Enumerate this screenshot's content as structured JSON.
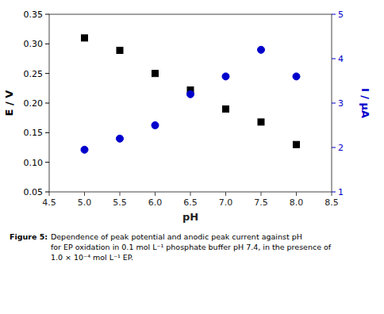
{
  "chart_data": {
    "type": "scatter",
    "xlabel": "pH",
    "ylabel": "E / V",
    "y2label": "I / μA",
    "x": [
      5.0,
      5.5,
      6.0,
      6.5,
      7.0,
      7.5,
      8.0
    ],
    "series": [
      {
        "color": "#000000",
        "marker": "square",
        "values": [
          0.31,
          0.289,
          0.25,
          0.222,
          0.19,
          0.168,
          0.13
        ]
      },
      {
        "color": "#0000cc",
        "marker": "circle",
        "axis": "y2",
        "values": [
          1.95,
          2.2,
          2.5,
          3.2,
          3.6,
          4.2,
          3.6
        ]
      }
    ],
    "xlim": [
      4.5,
      8.5
    ],
    "xticks": [
      4.5,
      {
        "value": 5.0,
        "label": "5.0"
      },
      5.5,
      {
        "value": 6.0,
        "label": "6.0"
      },
      6.5,
      {
        "value": 7.0,
        "label": "7.0"
      },
      7.5,
      {
        "value": 8.0,
        "label": "8.0"
      },
      8.5
    ],
    "ylim": [
      0.05,
      0.35
    ],
    "yticks": [
      0.05,
      {
        "value": 0.1,
        "label": "0.10"
      },
      0.15,
      {
        "value": 0.2,
        "label": "0.20"
      },
      0.25,
      {
        "value": 0.3,
        "label": "0.30"
      },
      0.35
    ],
    "y2lim": [
      1,
      5
    ],
    "y2ticks": [
      1,
      2,
      3,
      4,
      5
    ],
    "grid": false,
    "annotations": [
      "Figure 5:",
      "Dependence of peak potential and anodic peak current against pH\nfor EP oxidation in 0.1 mol L⁻¹ phosphate buffer pH 7.4, in the presence of\n1.0 × 10⁻⁴ mol L⁻¹ EP."
    ]
  }
}
